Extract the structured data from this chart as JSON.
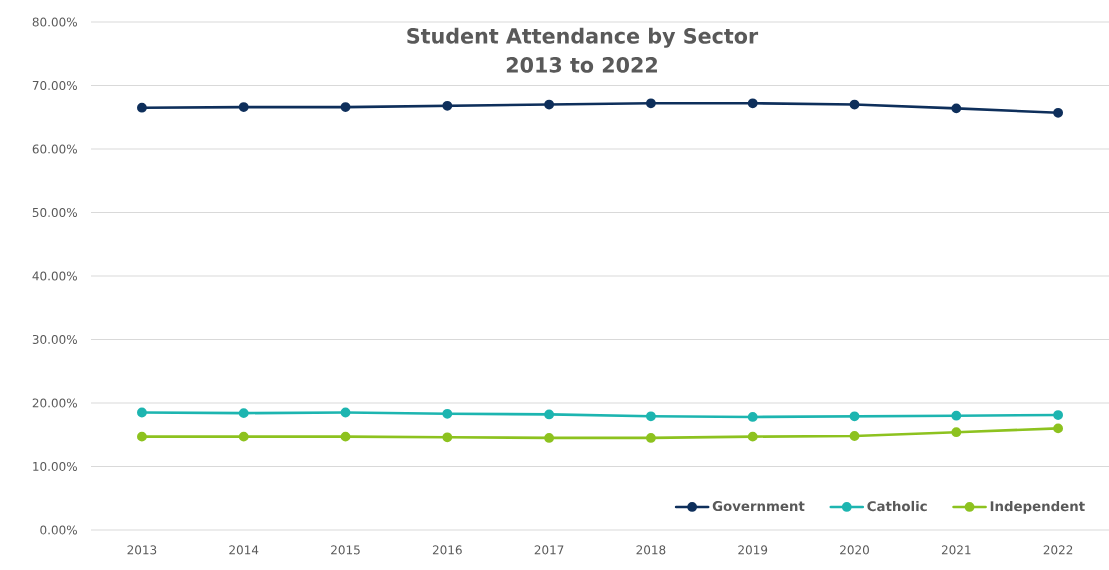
{
  "chart_data": {
    "type": "line",
    "title": "Student Attendance by Sector",
    "subtitle": "2013 to 2022",
    "categories": [
      "2013",
      "2014",
      "2015",
      "2016",
      "2017",
      "2018",
      "2019",
      "2020",
      "2021",
      "2022"
    ],
    "series": [
      {
        "name": "Government",
        "color": "#0e2f5b",
        "values": [
          66.5,
          66.6,
          66.6,
          66.8,
          67.0,
          67.2,
          67.2,
          67.0,
          66.4,
          65.7
        ]
      },
      {
        "name": "Catholic",
        "color": "#1db5b0",
        "values": [
          18.5,
          18.4,
          18.5,
          18.3,
          18.2,
          17.9,
          17.8,
          17.9,
          18.0,
          18.1
        ]
      },
      {
        "name": "Independent",
        "color": "#8dc21f",
        "values": [
          14.7,
          14.7,
          14.7,
          14.6,
          14.5,
          14.5,
          14.7,
          14.8,
          15.4,
          16.0
        ]
      }
    ],
    "ylim": [
      0,
      80
    ],
    "yticks": [
      {
        "value": 0,
        "label": "0.00%"
      },
      {
        "value": 10,
        "label": "10.00%"
      },
      {
        "value": 20,
        "label": "20.00%"
      },
      {
        "value": 30,
        "label": "30.00%"
      },
      {
        "value": 40,
        "label": "40.00%"
      },
      {
        "value": 50,
        "label": "50.00%"
      },
      {
        "value": 60,
        "label": "60.00%"
      },
      {
        "value": 70,
        "label": "70.00%"
      },
      {
        "value": 80,
        "label": "80.00%"
      }
    ],
    "grid": "y",
    "legend": "bottom right",
    "marker": "circle",
    "line_style": "solid"
  }
}
